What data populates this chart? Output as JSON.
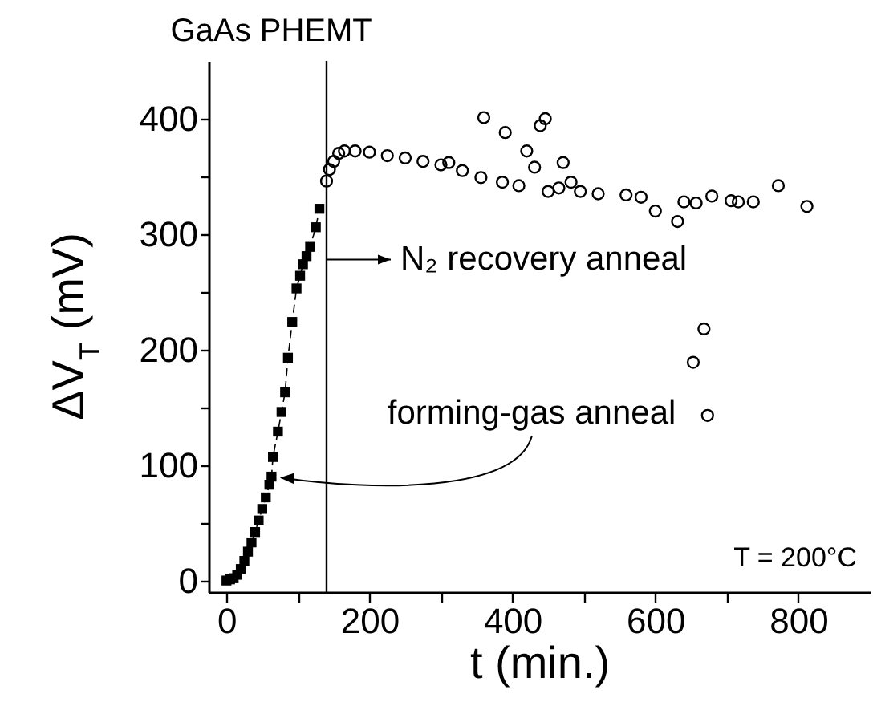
{
  "chart_data": {
    "type": "scatter",
    "title": "GaAs PHEMT",
    "xlabel": "t  (min.)",
    "ylabel": "ΔV$_{T}$ (mV)",
    "xlim": [
      -25,
      900
    ],
    "ylim": [
      -10,
      450
    ],
    "xticks": [
      0,
      {
        "value": 100,
        "label": null
      },
      200,
      {
        "value": 300,
        "label": null
      },
      400,
      {
        "value": 500,
        "label": null
      },
      600,
      {
        "value": 700,
        "label": null
      },
      800
    ],
    "yticks": [
      0,
      {
        "value": 50,
        "label": null
      },
      100,
      {
        "value": 150,
        "label": null
      },
      200,
      {
        "value": 250,
        "label": null
      },
      300,
      {
        "value": 350,
        "label": null
      },
      400
    ],
    "grid": false,
    "series": [
      {
        "type": "line",
        "marker": "square",
        "line_style": "dashed",
        "color": "#000000",
        "x": [
          0,
          5,
          10,
          15,
          20,
          25,
          30,
          35,
          40,
          45,
          50,
          55,
          60,
          63,
          65,
          72,
          77,
          82,
          86,
          92,
          98,
          103,
          107,
          112,
          117,
          125,
          130
        ],
        "values": [
          0,
          1,
          2,
          5,
          10,
          17,
          25,
          33,
          42,
          52,
          62,
          72,
          83,
          90,
          107,
          129,
          146,
          163,
          193,
          224,
          253,
          264,
          274,
          281,
          289,
          306,
          322
        ]
      },
      {
        "marker": "circle",
        "color": "#000000",
        "x": [
          140,
          144,
          150,
          157,
          165,
          180,
          200,
          225,
          250,
          275,
          300,
          311,
          330,
          356,
          386,
          409,
          360,
          390,
          420,
          431,
          439,
          446,
          471,
          450,
          465,
          482,
          495,
          520,
          559,
          580,
          600,
          631,
          640,
          657,
          653,
          668,
          673,
          679,
          706,
          716,
          737,
          772,
          812
        ],
        "values": [
          346,
          356,
          363,
          370,
          372,
          372,
          371,
          368,
          366,
          363,
          360,
          362,
          355,
          349,
          345,
          342,
          401,
          388,
          372,
          358,
          394,
          400,
          362,
          337,
          340,
          345,
          337,
          335,
          334,
          332,
          320,
          311,
          328,
          327,
          189,
          218,
          143,
          333,
          329,
          328,
          328,
          342,
          324
        ]
      }
    ],
    "ref_lines": [
      {
        "axis": "x",
        "value": 140,
        "color": "#000000"
      }
    ],
    "annotations": [
      {
        "text": "N₂ recovery anneal",
        "x": 140,
        "y": 278
      },
      {
        "text": "forming-gas anneal",
        "x": 68,
        "y": 89
      },
      "T = 200°C"
    ]
  }
}
